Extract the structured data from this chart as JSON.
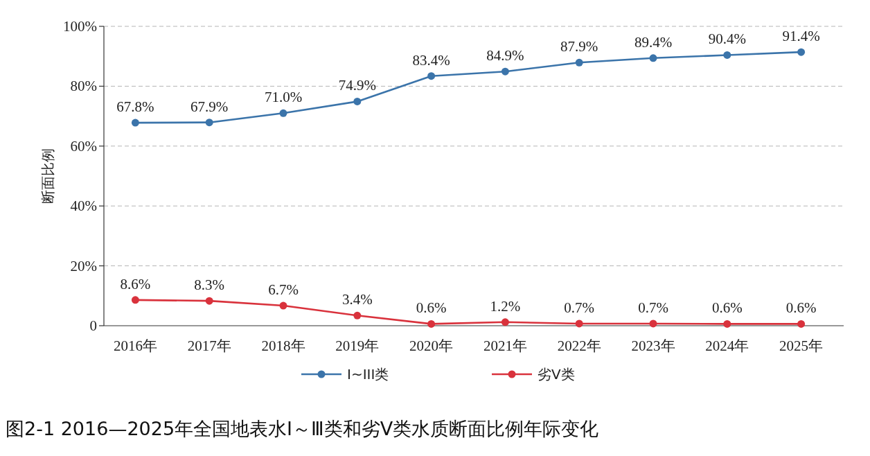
{
  "chart_data": {
    "type": "line",
    "title": "图2-1 2016—2025年全国地表水Ⅰ～Ⅲ类和劣Ⅴ类水质断面比例年际变化",
    "ylabel": "断面比例",
    "categories": [
      "2016年",
      "2017年",
      "2018年",
      "2019年",
      "2020年",
      "2021年",
      "2022年",
      "2023年",
      "2024年",
      "2025年"
    ],
    "series": [
      {
        "name": "I~III类",
        "color": "#3b74aa",
        "values": [
          67.8,
          67.9,
          71.0,
          74.9,
          83.4,
          84.9,
          87.9,
          89.4,
          90.4,
          91.4
        ],
        "value_labels": [
          "67.8%",
          "67.9%",
          "71.0%",
          "74.9%",
          "83.4%",
          "84.9%",
          "87.9%",
          "89.4%",
          "90.4%",
          "91.4%"
        ]
      },
      {
        "name": "劣V类",
        "color": "#d9323c",
        "values": [
          8.6,
          8.3,
          6.7,
          3.4,
          0.6,
          1.2,
          0.7,
          0.7,
          0.6,
          0.6
        ],
        "value_labels": [
          "8.6%",
          "8.3%",
          "6.7%",
          "3.4%",
          "0.6%",
          "1.2%",
          "0.7%",
          "0.7%",
          "0.6%",
          "0.6%"
        ]
      }
    ],
    "ylim": [
      0,
      100
    ],
    "yticks": [
      0,
      {
        "value": 20,
        "label": "20%"
      },
      {
        "value": 40,
        "label": "40%"
      },
      {
        "value": 60,
        "label": "60%"
      },
      {
        "value": 80,
        "label": "80%"
      },
      {
        "value": 100,
        "label": "100%"
      }
    ],
    "grid": "y",
    "legend": "bottom",
    "marker": "circle",
    "line_style": "solid"
  }
}
